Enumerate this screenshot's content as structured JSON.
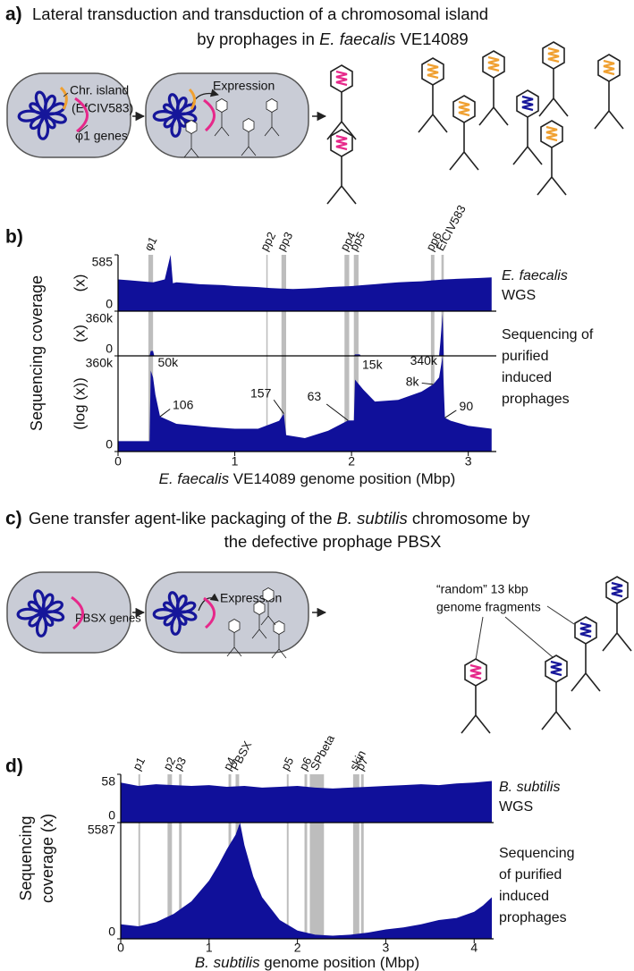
{
  "panel_a": {
    "label": "a)",
    "title_line1": "Lateral transduction and transduction of a chromosomal island",
    "title_line2": [
      "by prophages in ",
      "E. faecalis",
      " VE14089"
    ],
    "island_label": "Chr. island",
    "island_name": "(EfCIV583)",
    "genes_label": "φ1 genes",
    "expression_label": "Expression"
  },
  "panel_b": {
    "label": "b)"
  },
  "panel_c": {
    "label": "c)",
    "title_line1": [
      "Gene transfer agent-like packaging of the ",
      "B. subtilis",
      " chromosome by"
    ],
    "title_line2": "the defective prophage PBSX",
    "genes_label": "PBSX genes",
    "expression_label": "Expression",
    "fragments_label": [
      "“random” 13 kbp",
      "genome fragments"
    ]
  },
  "panel_d": {
    "label": "d)"
  },
  "chart_data": [
    {
      "type": "area",
      "xlabel": [
        "E. faecalis",
        " VE14089 genome position (Mbp)"
      ],
      "ylabel": "Sequencing coverage",
      "xlim": [
        0,
        3.24
      ],
      "xticks": [
        0,
        1,
        2,
        3
      ],
      "color": "#10109a",
      "region_color": "#bdbdbd",
      "regions": [
        {
          "name": "φ1",
          "start": 0.26,
          "end": 0.3
        },
        {
          "name": "pp2",
          "start": 1.27,
          "end": 1.28
        },
        {
          "name": "pp3",
          "start": 1.4,
          "end": 1.44
        },
        {
          "name": "pp4",
          "start": 1.94,
          "end": 1.98
        },
        {
          "name": "pp5",
          "start": 2.02,
          "end": 2.06
        },
        {
          "name": "pp6",
          "start": 2.68,
          "end": 2.71
        },
        {
          "name": "EfCIV583",
          "start": 2.77,
          "end": 2.79
        }
      ],
      "tracks": [
        {
          "unit": "(x)",
          "label": [
            "E. faecalis",
            "WGS"
          ],
          "ylim": [
            0,
            585
          ],
          "yticks": [
            0,
            585
          ],
          "x": [
            0,
            0.1,
            0.2,
            0.3,
            0.4,
            0.45,
            0.47,
            0.5,
            0.6,
            0.7,
            0.8,
            0.9,
            1.0,
            1.1,
            1.2,
            1.3,
            1.4,
            1.5,
            1.6,
            1.7,
            1.8,
            1.9,
            2.0,
            2.1,
            2.2,
            2.3,
            2.4,
            2.5,
            2.6,
            2.7,
            2.8,
            2.9,
            3.0,
            3.1,
            3.2
          ],
          "values": [
            330,
            320,
            310,
            300,
            330,
            585,
            290,
            300,
            290,
            280,
            275,
            270,
            260,
            255,
            250,
            240,
            235,
            230,
            235,
            240,
            250,
            255,
            260,
            270,
            280,
            290,
            300,
            305,
            310,
            320,
            330,
            335,
            340,
            345,
            350
          ]
        },
        {
          "unit": "(x)",
          "label": [
            "Sequencing of",
            "purified",
            "induced",
            "prophages"
          ],
          "ylim": [
            0,
            360000
          ],
          "yticks": [
            0,
            {
              "value": 360000,
              "label": "360k"
            }
          ],
          "x": [
            0,
            0.27,
            0.28,
            0.3,
            0.31,
            2.02,
            2.03,
            2.07,
            2.08,
            2.75,
            2.76,
            2.78,
            2.79,
            3.2
          ],
          "values": [
            0,
            0,
            40000,
            40000,
            0,
            0,
            12000,
            12000,
            0,
            0,
            100000,
            340000,
            0,
            0
          ]
        },
        {
          "unit": "(log (x))",
          "log": true,
          "ylim": [
            0,
            360000
          ],
          "yticks": [
            0,
            {
              "value": 360000,
              "label": "360k"
            }
          ],
          "x": [
            0,
            0.2,
            0.27,
            0.28,
            0.3,
            0.32,
            0.36,
            0.5,
            0.8,
            1.0,
            1.2,
            1.38,
            1.42,
            1.44,
            1.6,
            1.8,
            1.97,
            2.02,
            2.03,
            2.1,
            2.2,
            2.4,
            2.6,
            2.7,
            2.75,
            2.78,
            2.8,
            2.85,
            3.0,
            3.2
          ],
          "values": [
            3,
            3,
            3,
            50000,
            20000,
            2000,
            106,
            40,
            25,
            20,
            20,
            60,
            157,
            8,
            5,
            15,
            63,
            63,
            15000,
            4000,
            800,
            1000,
            3000,
            8000,
            20000,
            340000,
            90,
            60,
            30,
            20
          ],
          "annotations": [
            {
              "label": "50k",
              "x": 0.28,
              "value": 50000
            },
            {
              "label": "106",
              "x": 0.36,
              "value": 106
            },
            {
              "label": "157",
              "x": 1.42,
              "value": 157
            },
            {
              "label": "63",
              "x": 1.97,
              "value": 63
            },
            {
              "label": "15k",
              "x": 2.03,
              "value": 15000
            },
            {
              "label": "340k",
              "x": 2.78,
              "value": 340000
            },
            {
              "label": "8k",
              "x": 2.7,
              "value": 8000
            },
            {
              "label": "90",
              "x": 2.8,
              "value": 90
            }
          ]
        }
      ]
    },
    {
      "type": "area",
      "xlabel": [
        "B. subtilis",
        " genome position (Mbp)"
      ],
      "ylabel": [
        "Sequencing",
        "coverage (x)"
      ],
      "xlim": [
        0,
        4.22
      ],
      "xticks": [
        0,
        1,
        2,
        3,
        4
      ],
      "color": "#10109a",
      "region_color": "#bdbdbd",
      "regions": [
        {
          "name": "p1",
          "start": 0.2,
          "end": 0.22
        },
        {
          "name": "p2",
          "start": 0.53,
          "end": 0.58
        },
        {
          "name": "p3",
          "start": 0.66,
          "end": 0.69
        },
        {
          "name": "p4",
          "start": 1.22,
          "end": 1.25
        },
        {
          "name": "PBSX",
          "start": 1.3,
          "end": 1.34
        },
        {
          "name": "p5",
          "start": 1.88,
          "end": 1.9
        },
        {
          "name": "p6",
          "start": 2.08,
          "end": 2.11
        },
        {
          "name": "SPbeta",
          "start": 2.14,
          "end": 2.3
        },
        {
          "name": "skin",
          "start": 2.63,
          "end": 2.7
        },
        {
          "name": "p7",
          "start": 2.72,
          "end": 2.75
        }
      ],
      "tracks": [
        {
          "label": [
            "B. subtilis",
            "WGS"
          ],
          "ylim": [
            0,
            58
          ],
          "yticks": [
            0,
            58
          ],
          "x": [
            0,
            0.2,
            0.4,
            0.6,
            0.8,
            1.0,
            1.2,
            1.4,
            1.6,
            1.8,
            2.0,
            2.2,
            2.4,
            2.6,
            2.8,
            3.0,
            3.2,
            3.4,
            3.6,
            3.8,
            4.0,
            4.2
          ],
          "values": [
            48,
            44,
            46,
            45,
            44,
            45,
            43,
            44,
            42,
            43,
            44,
            42,
            41,
            42,
            43,
            44,
            45,
            46,
            45,
            47,
            48,
            50
          ]
        },
        {
          "label": [
            "Sequencing",
            "of purified",
            "induced",
            "prophages"
          ],
          "ylim": [
            0,
            5587
          ],
          "yticks": [
            0,
            5587
          ],
          "x": [
            0,
            0.2,
            0.4,
            0.6,
            0.8,
            1.0,
            1.1,
            1.2,
            1.3,
            1.35,
            1.4,
            1.5,
            1.6,
            1.8,
            2.0,
            2.2,
            2.4,
            2.6,
            2.8,
            3.0,
            3.2,
            3.4,
            3.6,
            3.8,
            4.0,
            4.1,
            4.2
          ],
          "values": [
            700,
            600,
            800,
            1200,
            1800,
            2800,
            3500,
            4300,
            5000,
            5587,
            4500,
            3000,
            2000,
            900,
            400,
            200,
            150,
            200,
            300,
            450,
            550,
            700,
            900,
            1000,
            1300,
            1600,
            2000
          ]
        }
      ]
    }
  ]
}
